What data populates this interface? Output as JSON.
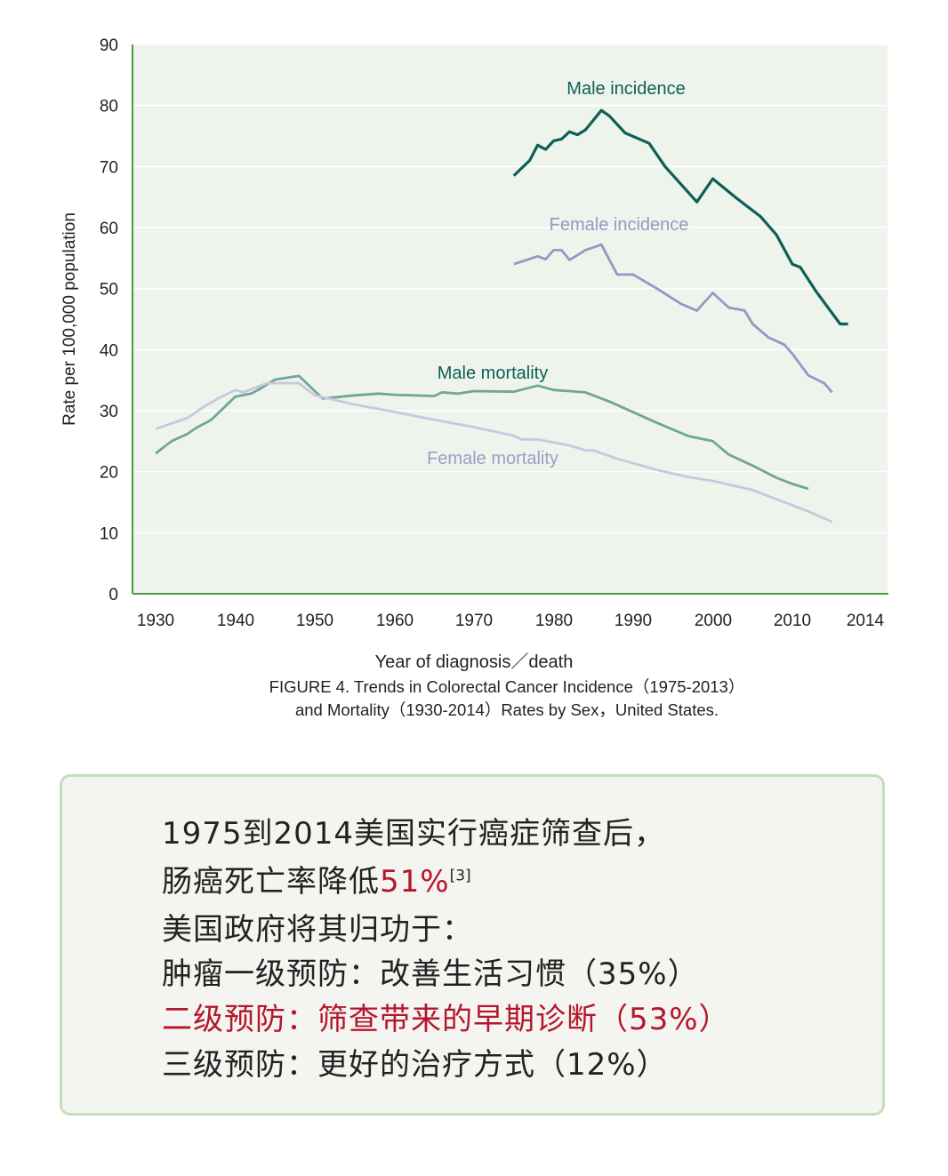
{
  "chart_data": {
    "type": "line",
    "ylabel": "Rate per 100,000 population",
    "xlabel": "Year of diagnosis／death",
    "ylim": [
      0,
      90
    ],
    "xlim": [
      1928,
      2015
    ],
    "yticks": [
      0,
      10,
      20,
      30,
      40,
      50,
      60,
      70,
      80,
      90
    ],
    "xticks": [
      "1930",
      "1940",
      "1950",
      "1960",
      "1970",
      "1980",
      "1990",
      "2000",
      "2010",
      "2014"
    ],
    "grid": "horizontal",
    "series": [
      {
        "name": "Male incidence",
        "color": "#0d5f57",
        "points": [
          [
            1975,
            68.5
          ],
          [
            1977,
            71
          ],
          [
            1978,
            73.5
          ],
          [
            1979,
            72.8
          ],
          [
            1980,
            74.2
          ],
          [
            1981,
            74.5
          ],
          [
            1982,
            75.7
          ],
          [
            1983,
            75.2
          ],
          [
            1984,
            76
          ],
          [
            1986,
            79.2
          ],
          [
            1987,
            78.3
          ],
          [
            1989,
            75.5
          ],
          [
            1992,
            73.8
          ],
          [
            1994,
            70
          ],
          [
            1998,
            64.2
          ],
          [
            2000,
            68
          ],
          [
            2003,
            64.8
          ],
          [
            2006,
            61.8
          ],
          [
            2008,
            58.8
          ],
          [
            2010,
            54
          ],
          [
            2011,
            53.5
          ],
          [
            2013,
            49.5
          ],
          [
            2016,
            44.2
          ],
          [
            2017,
            44.2
          ]
        ]
      },
      {
        "name": "Female incidence",
        "color": "#9a95c3",
        "points": [
          [
            1975,
            54
          ],
          [
            1978,
            55.3
          ],
          [
            1979,
            54.8
          ],
          [
            1980,
            56.3
          ],
          [
            1981,
            56.3
          ],
          [
            1982,
            54.7
          ],
          [
            1984,
            56.3
          ],
          [
            1986,
            57.2
          ],
          [
            1988,
            52.3
          ],
          [
            1990,
            52.3
          ],
          [
            1993,
            50
          ],
          [
            1996,
            47.5
          ],
          [
            1998,
            46.4
          ],
          [
            2000,
            49.3
          ],
          [
            2002,
            46.9
          ],
          [
            2004,
            46.4
          ],
          [
            2005,
            44.2
          ],
          [
            2007,
            42
          ],
          [
            2009,
            40.8
          ],
          [
            2010,
            39.3
          ],
          [
            2012,
            35.8
          ],
          [
            2014,
            34.5
          ],
          [
            2015,
            33
          ]
        ]
      },
      {
        "name": "Male mortality",
        "color": "#6ea699",
        "points": [
          [
            1930,
            23
          ],
          [
            1932,
            25
          ],
          [
            1934,
            26.2
          ],
          [
            1935,
            27.1
          ],
          [
            1937,
            28.5
          ],
          [
            1940,
            32.3
          ],
          [
            1942,
            32.8
          ],
          [
            1943,
            33.5
          ],
          [
            1945,
            35.1
          ],
          [
            1948,
            35.7
          ],
          [
            1950,
            33.2
          ],
          [
            1951,
            32
          ],
          [
            1955,
            32.5
          ],
          [
            1958,
            32.8
          ],
          [
            1960,
            32.6
          ],
          [
            1965,
            32.4
          ],
          [
            1966,
            33
          ],
          [
            1968,
            32.8
          ],
          [
            1970,
            33.2
          ],
          [
            1975,
            33.1
          ],
          [
            1978,
            34.1
          ],
          [
            1980,
            33.4
          ],
          [
            1984,
            33
          ],
          [
            1987,
            31.5
          ],
          [
            1993,
            28
          ],
          [
            1997,
            25.8
          ],
          [
            2000,
            25
          ],
          [
            2002,
            22.8
          ],
          [
            2005,
            21
          ],
          [
            2008,
            19
          ],
          [
            2010,
            18
          ],
          [
            2012,
            17.2
          ]
        ]
      },
      {
        "name": "Female mortality",
        "color": "#c9c7dd",
        "points": [
          [
            1930,
            27
          ],
          [
            1934,
            28.8
          ],
          [
            1936,
            30.6
          ],
          [
            1938,
            32.1
          ],
          [
            1940,
            33.4
          ],
          [
            1941,
            33
          ],
          [
            1944,
            34.5
          ],
          [
            1948,
            34.5
          ],
          [
            1950,
            32.5
          ],
          [
            1955,
            31
          ],
          [
            1960,
            29.8
          ],
          [
            1965,
            28.5
          ],
          [
            1970,
            27.3
          ],
          [
            1975,
            25.9
          ],
          [
            1976,
            25.3
          ],
          [
            1978,
            25.3
          ],
          [
            1982,
            24.3
          ],
          [
            1984,
            23.5
          ],
          [
            1985,
            23.5
          ],
          [
            1988,
            22.1
          ],
          [
            1993,
            20.3
          ],
          [
            1997,
            19.1
          ],
          [
            2000,
            18.5
          ],
          [
            2005,
            17
          ],
          [
            2009,
            15
          ],
          [
            2012,
            13.5
          ],
          [
            2015,
            11.8
          ]
        ]
      }
    ],
    "series_labels": {
      "male_incidence": "Male incidence",
      "female_incidence": "Female incidence",
      "male_mortality": "Male mortality",
      "female_mortality": "Female mortality"
    }
  },
  "caption": {
    "line1": "FIGURE 4. Trends in Colorectal Cancer Incidence（1975-2013）",
    "line2": "and Mortality（1930-2014）Rates by Sex，United States."
  },
  "box": {
    "line1": "1975到2014美国实行癌症筛查后，",
    "line2_prefix": "肠癌死亡率降低",
    "line2_highlight": "51%",
    "line2_ref": "[3]",
    "line3": "美国政府将其归功于：",
    "line4": "肿瘤一级预防：改善生活习惯（35%）",
    "line5": "二级预防：筛查带来的早期诊断（53%）",
    "line6": "三级预防：更好的治疗方式（12%）"
  }
}
